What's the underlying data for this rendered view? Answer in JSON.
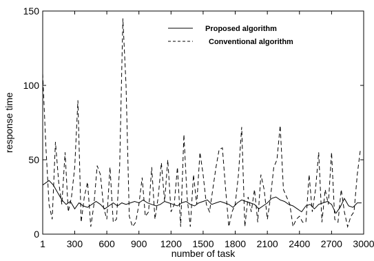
{
  "chart_data": {
    "type": "line",
    "title": "",
    "xlabel": "number of task",
    "ylabel": "response time",
    "xlim": [
      1,
      3000
    ],
    "ylim": [
      0,
      150
    ],
    "xticks": [
      1,
      300,
      600,
      900,
      1200,
      1500,
      1800,
      2100,
      2400,
      2700,
      3000
    ],
    "yticks": [
      0,
      50,
      100,
      150
    ],
    "grid": false,
    "legend_position": "top-right",
    "series": [
      {
        "name": "Proposed algorithm",
        "style": "solid",
        "color": "#000000",
        "x": [
          1,
          60,
          100,
          140,
          180,
          220,
          260,
          300,
          340,
          380,
          420,
          460,
          500,
          540,
          580,
          620,
          660,
          700,
          740,
          780,
          820,
          860,
          900,
          940,
          980,
          1020,
          1060,
          1100,
          1140,
          1180,
          1220,
          1260,
          1300,
          1340,
          1380,
          1420,
          1460,
          1500,
          1540,
          1580,
          1620,
          1660,
          1700,
          1740,
          1780,
          1820,
          1860,
          1900,
          1940,
          1980,
          2020,
          2060,
          2100,
          2140,
          2180,
          2220,
          2260,
          2300,
          2340,
          2380,
          2420,
          2460,
          2500,
          2540,
          2580,
          2620,
          2660,
          2700,
          2740,
          2780,
          2820,
          2860,
          2900,
          2940,
          2980
        ],
        "y": [
          33,
          36,
          33,
          28,
          23,
          20,
          22,
          17,
          21,
          19,
          18,
          20,
          22,
          20,
          17,
          19,
          21,
          19,
          21,
          20,
          21,
          22,
          21,
          23,
          21,
          20,
          19,
          20,
          22,
          21,
          20,
          19,
          21,
          22,
          20,
          19,
          21,
          22,
          23,
          20,
          21,
          22,
          21,
          20,
          18,
          21,
          23,
          22,
          21,
          20,
          17,
          19,
          21,
          24,
          25,
          23,
          22,
          20,
          19,
          17,
          15,
          19,
          20,
          17,
          20,
          21,
          22,
          20,
          14,
          18,
          24,
          19,
          18,
          21,
          21
        ]
      },
      {
        "name": "Conventional algorithm",
        "style": "dashed",
        "color": "#000000",
        "x": [
          1,
          30,
          60,
          90,
          120,
          150,
          180,
          210,
          240,
          270,
          300,
          330,
          360,
          390,
          420,
          450,
          480,
          510,
          540,
          570,
          600,
          630,
          660,
          690,
          720,
          750,
          780,
          810,
          840,
          870,
          900,
          930,
          960,
          990,
          1020,
          1050,
          1080,
          1110,
          1140,
          1170,
          1200,
          1230,
          1260,
          1290,
          1320,
          1350,
          1380,
          1410,
          1440,
          1470,
          1500,
          1530,
          1560,
          1590,
          1620,
          1650,
          1680,
          1710,
          1740,
          1770,
          1800,
          1830,
          1860,
          1890,
          1920,
          1950,
          1980,
          2010,
          2040,
          2070,
          2100,
          2130,
          2160,
          2190,
          2220,
          2250,
          2280,
          2310,
          2340,
          2370,
          2400,
          2430,
          2460,
          2490,
          2520,
          2550,
          2580,
          2610,
          2640,
          2670,
          2700,
          2730,
          2760,
          2790,
          2820,
          2850,
          2880,
          2910,
          2940,
          2970
        ],
        "y": [
          108,
          60,
          20,
          10,
          62,
          35,
          20,
          55,
          15,
          25,
          45,
          90,
          8,
          25,
          35,
          5,
          20,
          46,
          40,
          18,
          10,
          45,
          8,
          10,
          45,
          145,
          100,
          12,
          5,
          8,
          20,
          38,
          12,
          15,
          45,
          10,
          25,
          48,
          22,
          50,
          15,
          20,
          45,
          5,
          67,
          25,
          5,
          40,
          20,
          55,
          40,
          20,
          15,
          30,
          45,
          57,
          58,
          30,
          5,
          15,
          20,
          40,
          72,
          5,
          25,
          15,
          30,
          8,
          40,
          30,
          10,
          25,
          45,
          50,
          73,
          30,
          25,
          20,
          5,
          10,
          12,
          8,
          8,
          40,
          15,
          30,
          55,
          8,
          30,
          20,
          55,
          10,
          8,
          30,
          15,
          5,
          12,
          15,
          40,
          57
        ]
      }
    ]
  }
}
